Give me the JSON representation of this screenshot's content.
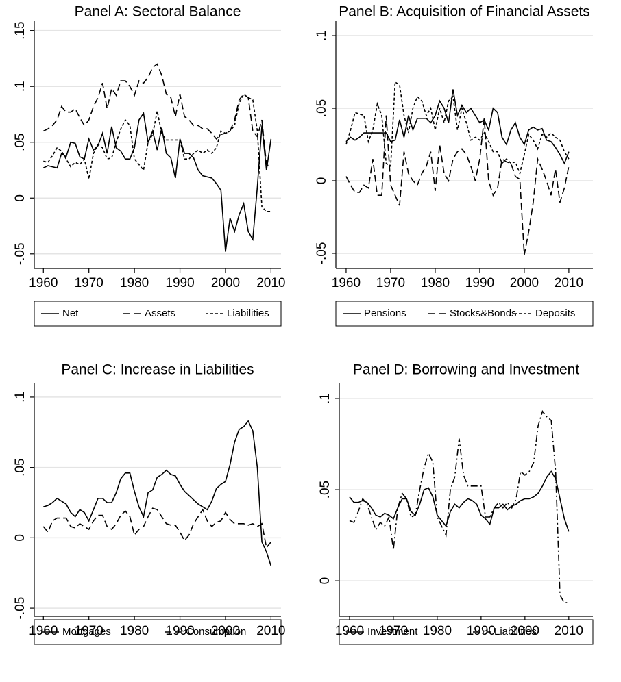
{
  "chart_data": [
    {
      "type": "line",
      "title": "Panel A: Sectoral Balance",
      "x": [
        1960,
        1961,
        1962,
        1963,
        1964,
        1965,
        1966,
        1967,
        1968,
        1969,
        1970,
        1971,
        1972,
        1973,
        1974,
        1975,
        1976,
        1977,
        1978,
        1979,
        1980,
        1981,
        1982,
        1983,
        1984,
        1985,
        1986,
        1987,
        1988,
        1989,
        1990,
        1991,
        1992,
        1993,
        1994,
        1995,
        1996,
        1997,
        1998,
        1999,
        2000,
        2001,
        2002,
        2003,
        2004,
        2005,
        2006,
        2007,
        2008,
        2009,
        2010
      ],
      "series": [
        {
          "name": "Net",
          "color": "#000000",
          "dash": "solid",
          "values": [
            0.027,
            0.029,
            0.028,
            0.027,
            0.04,
            0.037,
            0.05,
            0.049,
            0.037,
            0.035,
            0.053,
            0.043,
            0.047,
            0.058,
            0.04,
            0.064,
            0.045,
            0.042,
            0.035,
            0.035,
            0.045,
            0.07,
            0.076,
            0.05,
            0.06,
            0.043,
            0.063,
            0.04,
            0.036,
            0.018,
            0.053,
            0.04,
            0.04,
            0.036,
            0.025,
            0.02,
            0.019,
            0.018,
            0.013,
            0.007,
            -0.048,
            -0.018,
            -0.03,
            -0.015,
            -0.005,
            -0.03,
            -0.037,
            0.01,
            0.065,
            0.025,
            0.053
          ]
        },
        {
          "name": "Assets",
          "color": "#000000",
          "dash": "long",
          "values": [
            0.06,
            0.062,
            0.065,
            0.07,
            0.082,
            0.077,
            0.077,
            0.08,
            0.072,
            0.065,
            0.07,
            0.082,
            0.09,
            0.103,
            0.08,
            0.098,
            0.092,
            0.105,
            0.105,
            0.1,
            0.092,
            0.105,
            0.103,
            0.108,
            0.117,
            0.12,
            0.11,
            0.093,
            0.09,
            0.073,
            0.093,
            0.073,
            0.07,
            0.065,
            0.065,
            0.062,
            0.062,
            0.058,
            0.053,
            0.057,
            0.058,
            0.06,
            0.07,
            0.088,
            0.093,
            0.09,
            0.06,
            0.055,
            0.07,
            0.03,
            0.028
          ]
        },
        {
          "name": "Liabilities",
          "color": "#000000",
          "dash": "short",
          "values": [
            0.033,
            0.032,
            0.038,
            0.045,
            0.042,
            0.035,
            0.028,
            0.032,
            0.03,
            0.035,
            0.017,
            0.04,
            0.048,
            0.045,
            0.035,
            0.036,
            0.05,
            0.062,
            0.07,
            0.065,
            0.035,
            0.03,
            0.025,
            0.05,
            0.057,
            0.078,
            0.058,
            0.052,
            0.052,
            0.052,
            0.052,
            0.035,
            0.035,
            0.04,
            0.043,
            0.04,
            0.043,
            0.04,
            0.045,
            0.06,
            0.058,
            0.06,
            0.065,
            0.085,
            0.093,
            0.09,
            0.088,
            0.06,
            -0.008,
            -0.012,
            -0.012
          ]
        }
      ],
      "xlim": [
        1958,
        2012.2
      ],
      "xticks": [
        1960,
        1970,
        1980,
        1990,
        2000,
        2010
      ],
      "ylim": [
        -0.063,
        0.159
      ],
      "yticks": [
        {
          "value": -0.05,
          "label": "-.05"
        },
        0,
        {
          "value": 0.05,
          "label": ".05"
        },
        {
          "value": 0.1,
          "label": ".1"
        },
        {
          "value": 0.15,
          "label": ".15"
        }
      ],
      "grid": true,
      "legend": "bottom"
    },
    {
      "type": "line",
      "title": "Panel B: Acquisition of Financial Assets",
      "x": [
        1960,
        1961,
        1962,
        1963,
        1964,
        1965,
        1966,
        1967,
        1968,
        1969,
        1970,
        1971,
        1972,
        1973,
        1974,
        1975,
        1976,
        1977,
        1978,
        1979,
        1980,
        1981,
        1982,
        1983,
        1984,
        1985,
        1986,
        1987,
        1988,
        1989,
        1990,
        1991,
        1992,
        1993,
        1994,
        1995,
        1996,
        1997,
        1998,
        1999,
        2000,
        2001,
        2002,
        2003,
        2004,
        2005,
        2006,
        2007,
        2008,
        2009,
        2010
      ],
      "series": [
        {
          "name": "Pensions",
          "color": "#000000",
          "dash": "solid",
          "values": [
            0.027,
            0.03,
            0.028,
            0.03,
            0.033,
            0.033,
            0.033,
            0.033,
            0.033,
            0.033,
            0.027,
            0.028,
            0.042,
            0.03,
            0.045,
            0.035,
            0.043,
            0.043,
            0.043,
            0.04,
            0.045,
            0.055,
            0.05,
            0.04,
            0.063,
            0.045,
            0.052,
            0.047,
            0.05,
            0.045,
            0.04,
            0.042,
            0.035,
            0.05,
            0.047,
            0.03,
            0.025,
            0.035,
            0.04,
            0.03,
            0.025,
            0.035,
            0.037,
            0.035,
            0.036,
            0.028,
            0.027,
            0.023,
            0.018,
            0.012,
            0.02
          ]
        },
        {
          "name": "Stocks&Bonds",
          "color": "#000000",
          "dash": "long",
          "values": [
            0.003,
            -0.003,
            -0.008,
            -0.008,
            -0.003,
            -0.005,
            0.015,
            -0.01,
            -0.01,
            0.045,
            -0.003,
            -0.01,
            -0.017,
            0.02,
            0.005,
            0.0,
            -0.003,
            0.005,
            0.01,
            0.02,
            -0.007,
            0.025,
            0.005,
            0.0,
            0.015,
            0.02,
            0.022,
            0.018,
            0.01,
            0.0,
            0.015,
            0.043,
            0.0,
            -0.01,
            -0.005,
            0.015,
            0.013,
            0.012,
            0.003,
            0.001,
            -0.051,
            -0.035,
            -0.015,
            0.015,
            0.008,
            0.0,
            -0.01,
            0.008,
            -0.015,
            -0.005,
            0.01
          ]
        },
        {
          "name": "Deposits",
          "color": "#000000",
          "dash": "short",
          "values": [
            0.025,
            0.035,
            0.047,
            0.046,
            0.045,
            0.027,
            0.035,
            0.053,
            0.045,
            0.012,
            0.01,
            0.068,
            0.066,
            0.045,
            0.033,
            0.05,
            0.058,
            0.055,
            0.045,
            0.05,
            0.035,
            0.05,
            0.04,
            0.055,
            0.058,
            0.035,
            0.05,
            0.04,
            0.028,
            0.03,
            0.028,
            0.033,
            0.027,
            0.02,
            0.02,
            0.012,
            0.015,
            0.012,
            0.013,
            0.005,
            0.018,
            0.032,
            0.028,
            0.022,
            0.032,
            0.03,
            0.033,
            0.03,
            0.028,
            0.02,
            0.015
          ]
        }
      ],
      "xlim": [
        1957.7,
        2015.4
      ],
      "xticks": [
        1960,
        1970,
        1980,
        1990,
        2000,
        2010
      ],
      "ylim": [
        -0.0604,
        0.1104
      ],
      "yticks": [
        {
          "value": -0.05,
          "label": "-.05"
        },
        0,
        {
          "value": 0.05,
          "label": ".05"
        },
        {
          "value": 0.1,
          "label": ".1"
        }
      ],
      "grid": true,
      "legend": "bottom"
    },
    {
      "type": "line",
      "title": "Panel C: Increase in Liabilities",
      "x": [
        1960,
        1961,
        1962,
        1963,
        1964,
        1965,
        1966,
        1967,
        1968,
        1969,
        1970,
        1971,
        1972,
        1973,
        1974,
        1975,
        1976,
        1977,
        1978,
        1979,
        1980,
        1981,
        1982,
        1983,
        1984,
        1985,
        1986,
        1987,
        1988,
        1989,
        1990,
        1991,
        1992,
        1993,
        1994,
        1995,
        1996,
        1997,
        1998,
        1999,
        2000,
        2001,
        2002,
        2003,
        2004,
        2005,
        2006,
        2007,
        2008,
        2009,
        2010
      ],
      "series": [
        {
          "name": "Mortgages",
          "color": "#000000",
          "dash": "solid",
          "values": [
            0.022,
            0.023,
            0.025,
            0.028,
            0.026,
            0.024,
            0.018,
            0.015,
            0.02,
            0.018,
            0.012,
            0.02,
            0.028,
            0.028,
            0.025,
            0.025,
            0.032,
            0.042,
            0.046,
            0.046,
            0.033,
            0.022,
            0.015,
            0.032,
            0.034,
            0.043,
            0.045,
            0.048,
            0.045,
            0.044,
            0.038,
            0.033,
            0.03,
            0.027,
            0.024,
            0.022,
            0.02,
            0.026,
            0.035,
            0.038,
            0.04,
            0.052,
            0.068,
            0.077,
            0.079,
            0.083,
            0.076,
            0.05,
            -0.003,
            -0.01,
            -0.02
          ]
        },
        {
          "name": "Consumption",
          "color": "#000000",
          "dash": "long",
          "values": [
            0.008,
            0.004,
            0.012,
            0.014,
            0.014,
            0.014,
            0.008,
            0.007,
            0.01,
            0.008,
            0.006,
            0.012,
            0.016,
            0.016,
            0.008,
            0.006,
            0.01,
            0.016,
            0.019,
            0.015,
            0.002,
            0.006,
            0.008,
            0.015,
            0.021,
            0.02,
            0.015,
            0.01,
            0.009,
            0.009,
            0.004,
            -0.002,
            0.002,
            0.01,
            0.015,
            0.02,
            0.012,
            0.008,
            0.011,
            0.012,
            0.018,
            0.013,
            0.01,
            0.01,
            0.01,
            0.009,
            0.01,
            0.008,
            0.01,
            -0.007,
            -0.003
          ]
        }
      ],
      "xlim": [
        1958,
        2012.2
      ],
      "xticks": [
        1960,
        1970,
        1980,
        1990,
        2000,
        2010
      ],
      "ylim": [
        -0.0558,
        0.1097
      ],
      "yticks": [
        {
          "value": -0.05,
          "label": "-.05"
        },
        0,
        {
          "value": 0.05,
          "label": ".05"
        },
        {
          "value": 0.1,
          "label": ".1"
        }
      ],
      "grid": true,
      "legend": "bottom"
    },
    {
      "type": "line",
      "title": "Panel D: Borrowing and Investment",
      "x": [
        1960,
        1961,
        1962,
        1963,
        1964,
        1965,
        1966,
        1967,
        1968,
        1969,
        1970,
        1971,
        1972,
        1973,
        1974,
        1975,
        1976,
        1977,
        1978,
        1979,
        1980,
        1981,
        1982,
        1983,
        1984,
        1985,
        1986,
        1987,
        1988,
        1989,
        1990,
        1991,
        1992,
        1993,
        1994,
        1995,
        1996,
        1997,
        1998,
        1999,
        2000,
        2001,
        2002,
        2003,
        2004,
        2005,
        2006,
        2007,
        2008,
        2009,
        2010
      ],
      "series": [
        {
          "name": "Investment",
          "color": "#000000",
          "dash": "solid",
          "values": [
            0.046,
            0.043,
            0.043,
            0.044,
            0.043,
            0.04,
            0.036,
            0.035,
            0.037,
            0.036,
            0.034,
            0.04,
            0.045,
            0.045,
            0.038,
            0.036,
            0.042,
            0.05,
            0.051,
            0.046,
            0.036,
            0.033,
            0.03,
            0.038,
            0.042,
            0.04,
            0.043,
            0.045,
            0.044,
            0.042,
            0.036,
            0.034,
            0.031,
            0.04,
            0.04,
            0.042,
            0.039,
            0.041,
            0.042,
            0.044,
            0.045,
            0.045,
            0.046,
            0.048,
            0.052,
            0.057,
            0.06,
            0.056,
            0.045,
            0.034,
            0.027
          ]
        },
        {
          "name": "Liabilities",
          "color": "#000000",
          "dash": "dashdot",
          "values": [
            0.033,
            0.032,
            0.038,
            0.045,
            0.042,
            0.035,
            0.028,
            0.032,
            0.03,
            0.035,
            0.017,
            0.04,
            0.048,
            0.045,
            0.035,
            0.036,
            0.05,
            0.062,
            0.07,
            0.065,
            0.035,
            0.03,
            0.025,
            0.05,
            0.057,
            0.078,
            0.058,
            0.052,
            0.052,
            0.052,
            0.052,
            0.035,
            0.035,
            0.04,
            0.043,
            0.04,
            0.043,
            0.04,
            0.045,
            0.06,
            0.058,
            0.06,
            0.065,
            0.085,
            0.093,
            0.09,
            0.088,
            0.06,
            -0.008,
            -0.012,
            -0.012
          ]
        }
      ],
      "xlim": [
        1957.66,
        2015.5
      ],
      "xticks": [
        1960,
        1970,
        1980,
        1990,
        2000,
        2010
      ],
      "ylim": [
        -0.0195,
        0.1083
      ],
      "yticks": [
        0,
        {
          "value": 0.05,
          "label": ".05"
        },
        {
          "value": 0.1,
          "label": ".1"
        }
      ],
      "grid": true,
      "legend": "bottom"
    }
  ]
}
